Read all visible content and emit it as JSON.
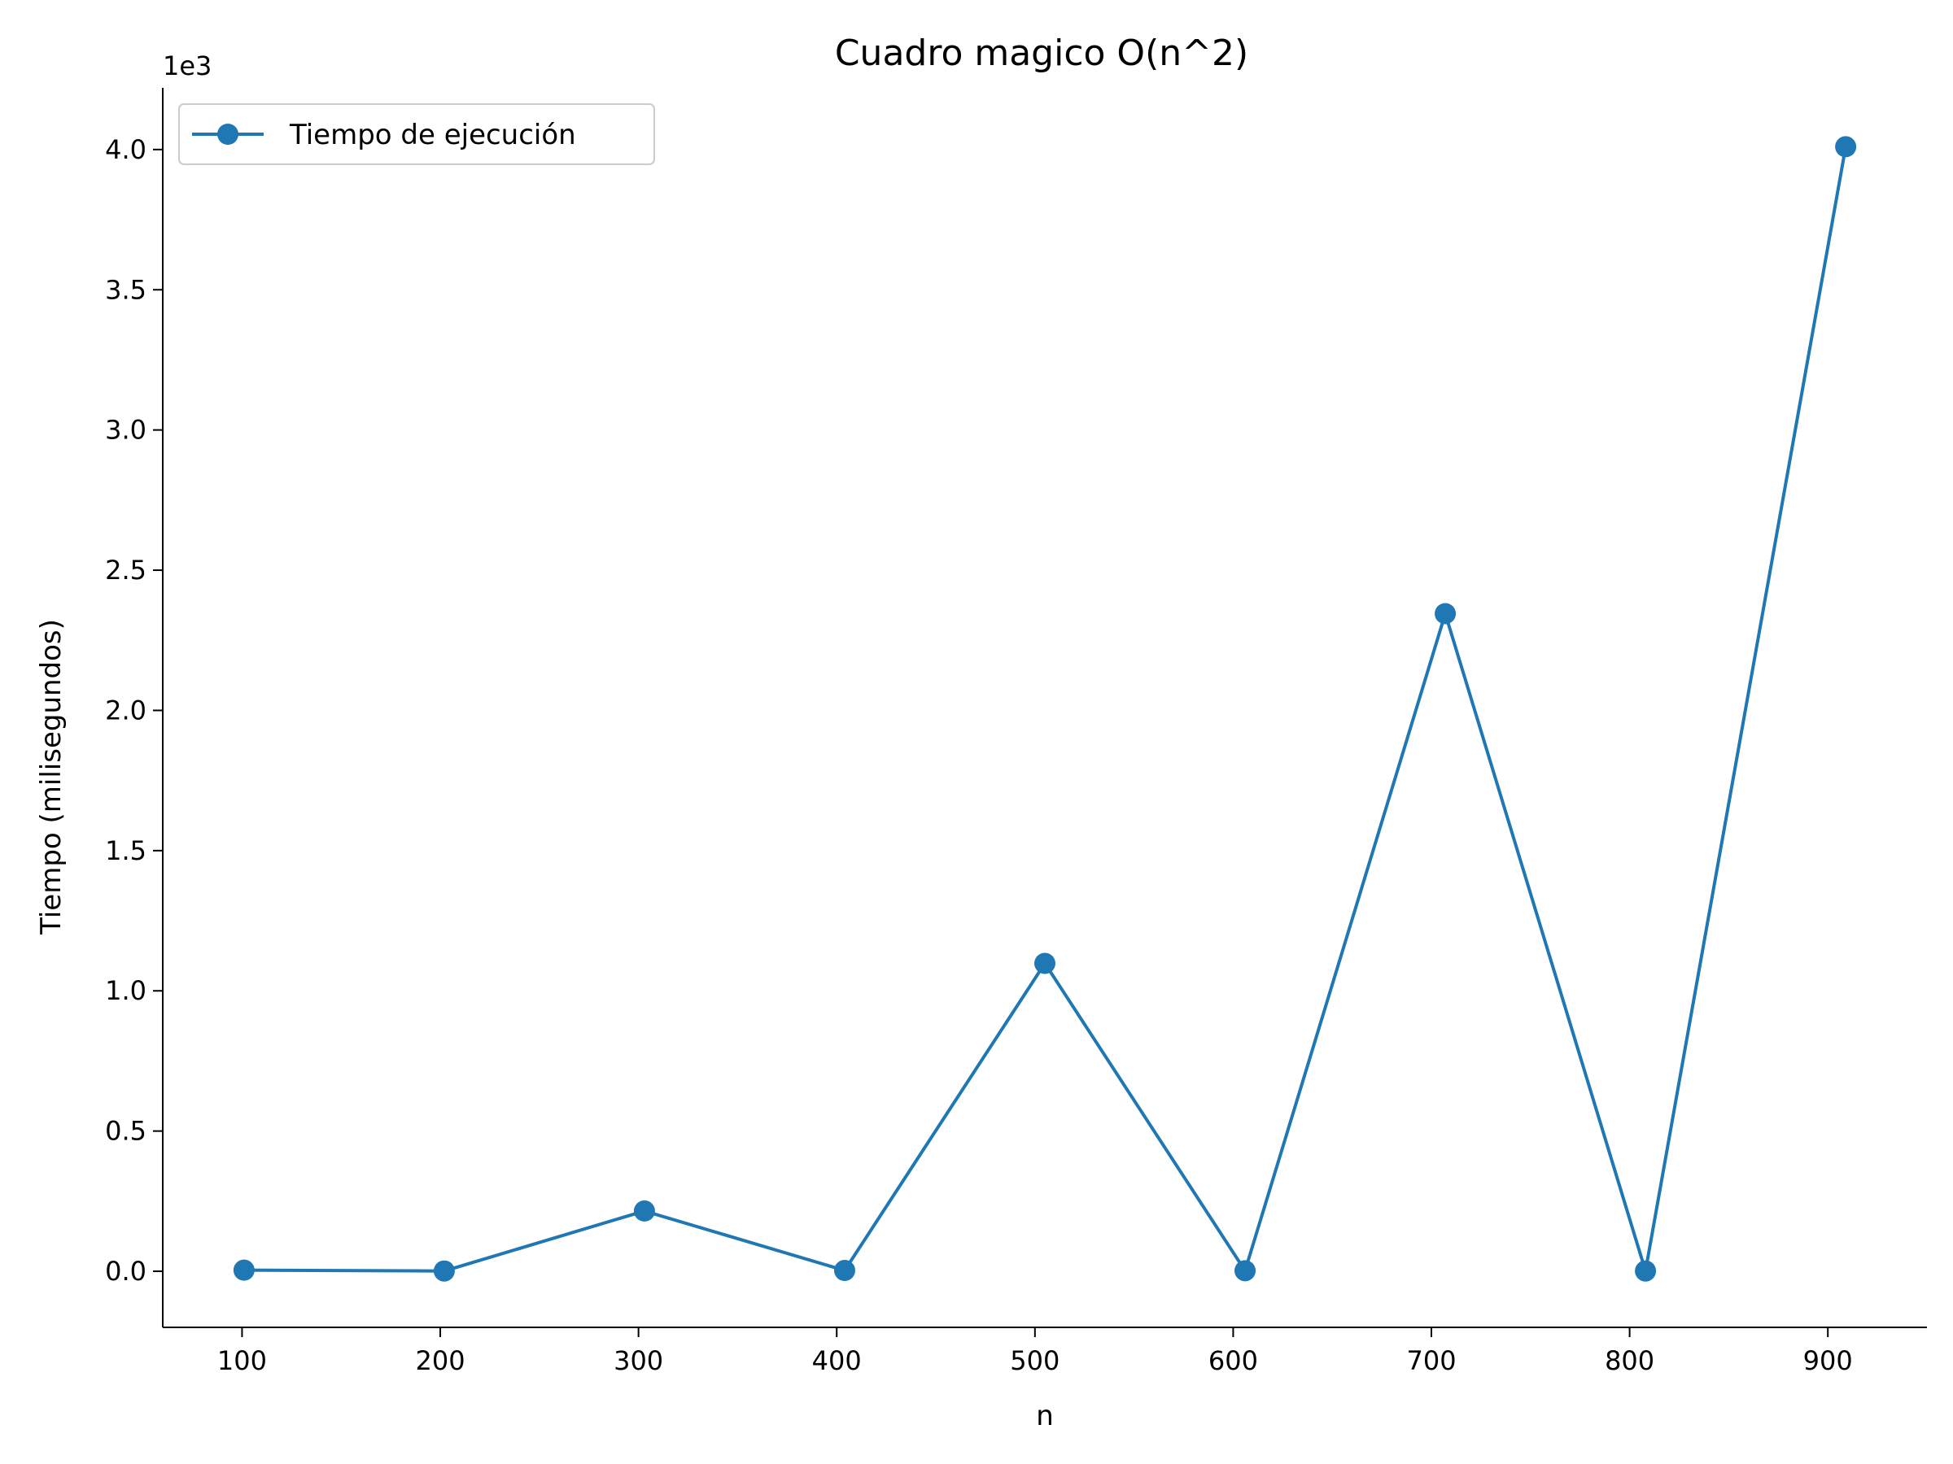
{
  "chart_data": {
    "type": "line",
    "title": "Cuadro magico O(n^2)",
    "xlabel": "n",
    "ylabel": "Tiempo (milisegundos)",
    "y_offset_label": "1e3",
    "xlim": [
      60,
      950
    ],
    "ylim": [
      -0.2,
      4.22
    ],
    "x_ticks": [
      100,
      200,
      300,
      400,
      500,
      600,
      700,
      800,
      900
    ],
    "x_tick_labels": [
      "100",
      "200",
      "300",
      "400",
      "500",
      "600",
      "700",
      "800",
      "900"
    ],
    "y_ticks": [
      0.0,
      0.5,
      1.0,
      1.5,
      2.0,
      2.5,
      3.0,
      3.5,
      4.0
    ],
    "y_tick_labels": [
      "0.0",
      "0.5",
      "1.0",
      "1.5",
      "2.0",
      "2.5",
      "3.0",
      "3.5",
      "4.0"
    ],
    "grid": false,
    "legend_position": "top-left",
    "color": "#1f77b4",
    "series": [
      {
        "name": "Tiempo de ejecución",
        "x": [
          101,
          202,
          303,
          404,
          505,
          606,
          707,
          808,
          909
        ],
        "y": [
          0.004,
          0.001,
          0.215,
          0.003,
          1.098,
          0.002,
          2.345,
          0.001,
          4.01
        ]
      }
    ]
  }
}
